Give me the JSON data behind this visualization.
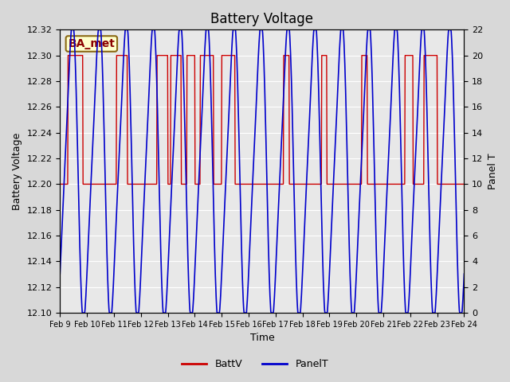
{
  "title": "Battery Voltage",
  "xlabel": "Time",
  "ylabel_left": "Battery Voltage",
  "ylabel_right": "Panel T",
  "annotation": "BA_met",
  "ylim_left": [
    12.1,
    12.32
  ],
  "ylim_right": [
    0,
    22
  ],
  "yticks_left": [
    12.1,
    12.12,
    12.14,
    12.16,
    12.18,
    12.2,
    12.22,
    12.24,
    12.26,
    12.28,
    12.3,
    12.32
  ],
  "yticks_right": [
    0,
    2,
    4,
    6,
    8,
    10,
    12,
    14,
    16,
    18,
    20,
    22
  ],
  "xtick_labels": [
    "Feb 9",
    "Feb 10",
    "Feb 11",
    "Feb 12",
    "Feb 13",
    "Feb 14",
    "Feb 15",
    "Feb 16",
    "Feb 17",
    "Feb 18",
    "Feb 19",
    "Feb 20",
    "Feb 21",
    "Feb 22",
    "Feb 23",
    "Feb 24"
  ],
  "background_color": "#e8e8e8",
  "plot_bg_color": "#f0f0f0",
  "batt_color": "#cc0000",
  "panel_color": "#0000cc",
  "legend_batt": "BattV",
  "legend_panel": "PanelT",
  "num_days": 16
}
